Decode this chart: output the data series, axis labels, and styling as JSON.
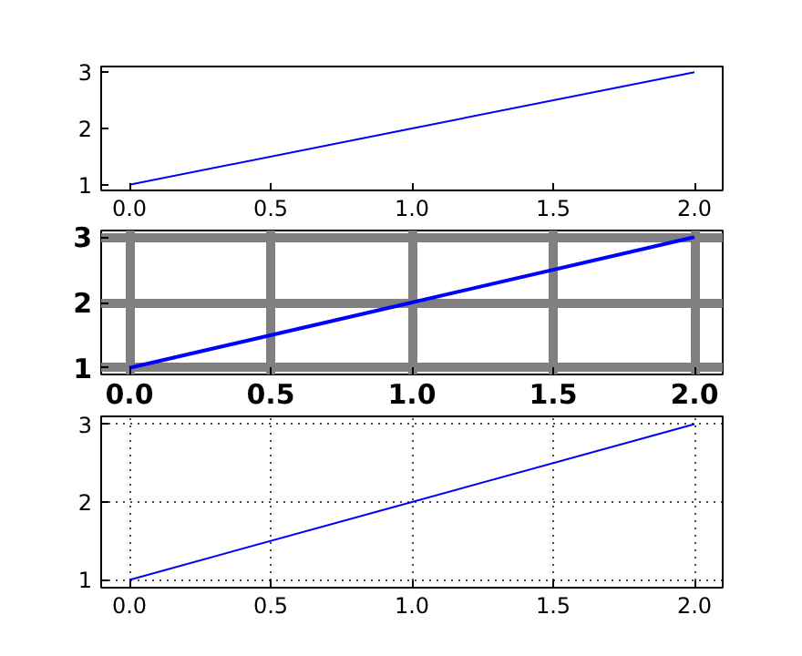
{
  "chart_data": [
    {
      "type": "line",
      "x": [
        0,
        1,
        2
      ],
      "series": [
        {
          "color": "#0000ff",
          "values": [
            1,
            2,
            3
          ]
        }
      ],
      "xlim": [
        -0.1,
        2.1
      ],
      "ylim": [
        0.9,
        3.1
      ],
      "xticks": [
        {
          "value": 0,
          "label": "0.0"
        },
        {
          "value": 0.5,
          "label": "0.5"
        },
        {
          "value": 1,
          "label": "1.0"
        },
        {
          "value": 1.5,
          "label": "1.5"
        },
        {
          "value": 2,
          "label": "2.0"
        }
      ],
      "yticks": [
        1,
        2,
        3
      ],
      "grid": false
    },
    {
      "type": "line",
      "x": [
        0,
        1,
        2
      ],
      "series": [
        {
          "color": "#0000ff",
          "values": [
            1,
            2,
            3
          ]
        }
      ],
      "xlim": [
        -0.1,
        2.1
      ],
      "ylim": [
        0.9,
        3.1
      ],
      "xticks": [
        {
          "value": 0,
          "label": "0.0"
        },
        {
          "value": 0.5,
          "label": "0.5"
        },
        {
          "value": 1,
          "label": "1.0"
        },
        {
          "value": 1.5,
          "label": "1.5"
        },
        {
          "value": 2,
          "label": "2.0"
        }
      ],
      "yticks": [
        1,
        2,
        3
      ],
      "grid": true
    },
    {
      "type": "line",
      "x": [
        0,
        1,
        2
      ],
      "series": [
        {
          "color": "#0000ff",
          "values": [
            1,
            2,
            3
          ]
        }
      ],
      "xlim": [
        -0.1,
        2.1
      ],
      "ylim": [
        0.9,
        3.1
      ],
      "xticks": [
        {
          "value": 0,
          "label": "0.0"
        },
        {
          "value": 0.5,
          "label": "0.5"
        },
        {
          "value": 1,
          "label": "1.0"
        },
        {
          "value": 1.5,
          "label": "1.5"
        },
        {
          "value": 2,
          "label": "2.0"
        }
      ],
      "yticks": [
        1,
        2,
        3
      ],
      "grid": true
    }
  ]
}
